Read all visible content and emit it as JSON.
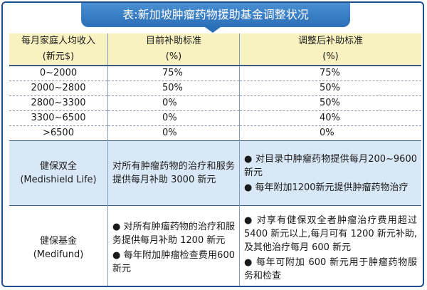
{
  "title": "表:新加坡肿瘤药物援助基金调整状况",
  "header": {
    "col1": [
      "每月家庭人均收入",
      "(新元$)"
    ],
    "col2": [
      "目前补助标准",
      "(%)"
    ],
    "col3": [
      "调整后补助标准",
      "(%)"
    ]
  },
  "rows": [
    {
      "income": "0~2000",
      "current": "75%",
      "adjusted": "75%"
    },
    {
      "income": "2000~2800",
      "current": "50%",
      "adjusted": "50%"
    },
    {
      "income": "2800~3300",
      "current": "0%",
      "adjusted": "50%"
    },
    {
      "income": "3300~6500",
      "current": "0%",
      "adjusted": "40%"
    },
    {
      "income": ">6500",
      "current": "0%",
      "adjusted": "0%"
    }
  ],
  "medishield": {
    "name": [
      "健保双全",
      "(Medishield Life)"
    ],
    "current": "对所有肿瘤药物的治疗和服务提供每月补助 3000 新元",
    "adjusted": [
      "● 对目录中肿瘤药物提供每月200~9600新元",
      "● 每年附加1200新元提供肿瘤药物治疗"
    ]
  },
  "medifund": {
    "name": [
      "健保基金",
      "(Medifund)"
    ],
    "current": [
      "● 对所有肿瘤药物的治疗和服务提供每月补助 1200 新元",
      "● 每年附加肿瘤检查费用600新元"
    ],
    "adjusted": [
      "● 对享有健保双全者肿瘤治疗费用超过 5400 新元以上,每月可有 1200 新元补助,及其他治疗每月 600 新元",
      "● 每年可附加 600 新元用于肿瘤药物服务和检查"
    ]
  }
}
